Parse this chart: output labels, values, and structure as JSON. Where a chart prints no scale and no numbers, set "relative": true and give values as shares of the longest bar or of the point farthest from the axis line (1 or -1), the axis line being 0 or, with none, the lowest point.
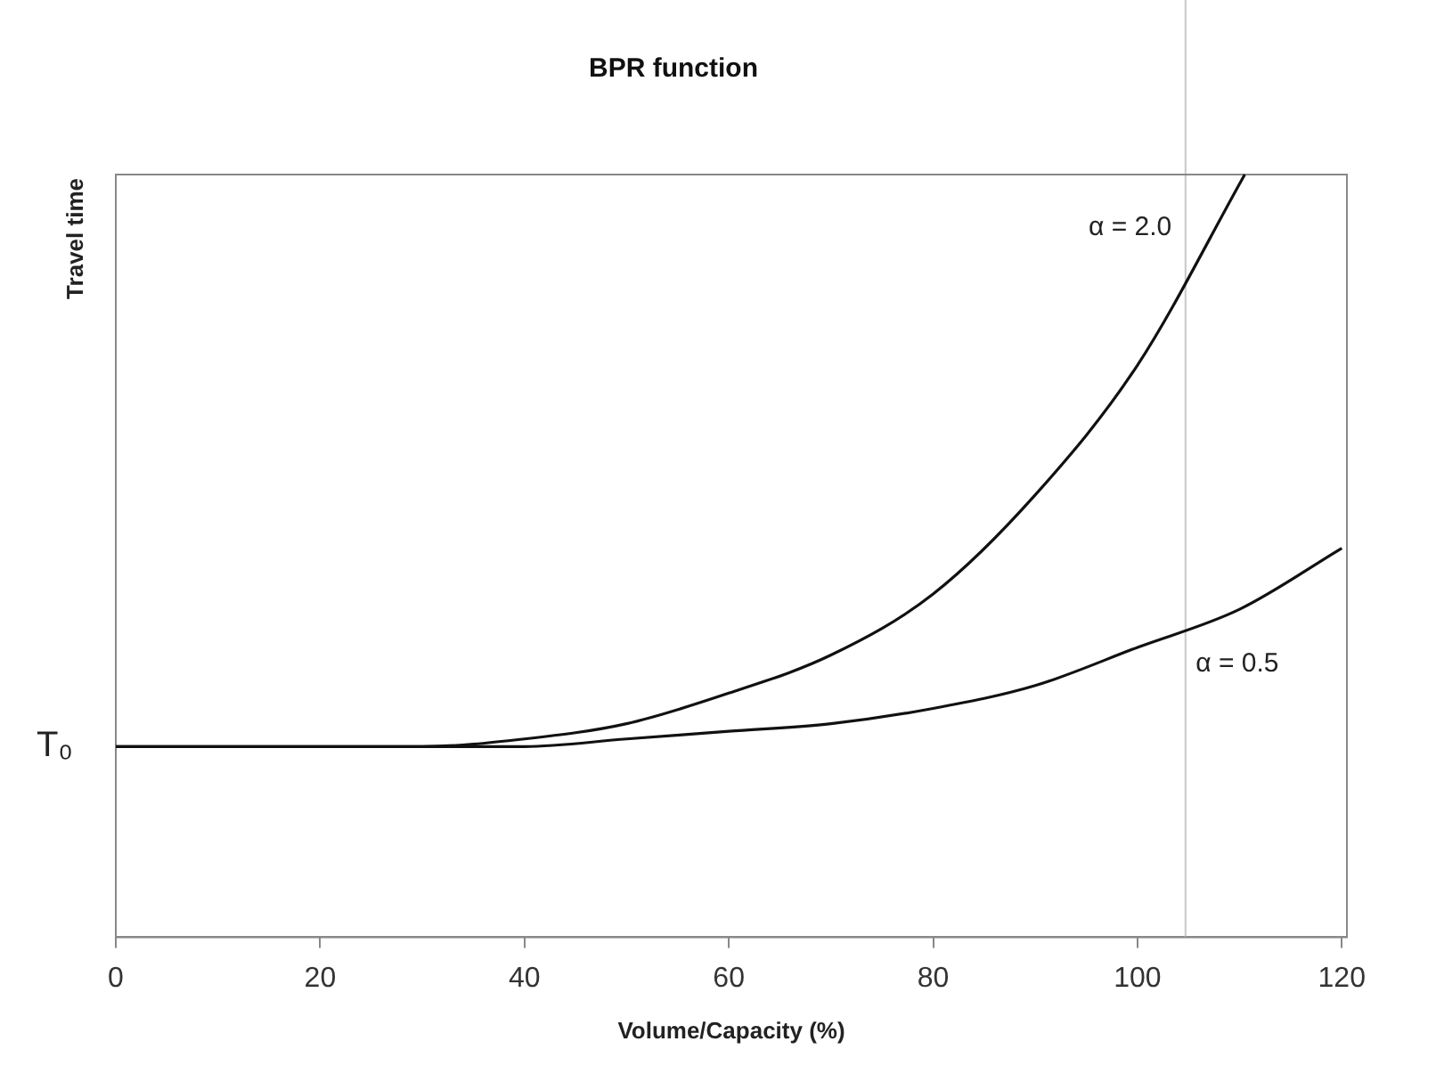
{
  "chart_data": {
    "type": "line",
    "title": "BPR function",
    "xlabel": "Volume/Capacity (%)",
    "ylabel": "Travel time",
    "relative": true,
    "xlim": [
      0,
      120.5
    ],
    "xticks": [
      0,
      20,
      40,
      60,
      80,
      100,
      120
    ],
    "grid": false,
    "legend": false,
    "marker": "none",
    "line_style": "solid",
    "annotations": [
      {
        "text": "T₀",
        "x": 0,
        "y": 0.25
      }
    ],
    "ref_lines": [
      {
        "axis": "x",
        "value": 104.7,
        "color": "#c8c8c8"
      }
    ],
    "series": [
      {
        "name": "α = 2.0",
        "color": "#111111",
        "x": [
          0,
          10,
          20,
          30,
          40,
          50,
          60,
          70,
          80,
          90,
          100,
          110.5
        ],
        "values": [
          0.25,
          0.25,
          0.25,
          0.25,
          0.26,
          0.28,
          0.32,
          0.37,
          0.45,
          0.58,
          0.75,
          1.0
        ]
      },
      {
        "name": "α = 0.5",
        "color": "#111111",
        "x": [
          0,
          10,
          20,
          30,
          40,
          50,
          60,
          70,
          80,
          90,
          100,
          110,
          120
        ],
        "values": [
          0.25,
          0.25,
          0.25,
          0.25,
          0.25,
          0.26,
          0.27,
          0.28,
          0.3,
          0.33,
          0.38,
          0.43,
          0.51
        ]
      }
    ]
  }
}
